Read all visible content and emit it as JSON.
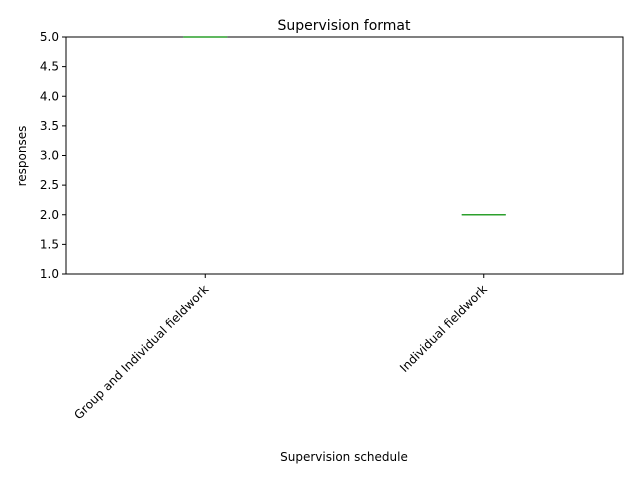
{
  "chart_data": {
    "type": "box",
    "title": "Supervision format",
    "xlabel": "Supervision schedule",
    "ylabel": "responses",
    "categories": [
      "Group and Individual fieldwork",
      "Individual fieldwork"
    ],
    "values": [
      5.0,
      2.0
    ],
    "ylim": [
      1.0,
      5.0
    ],
    "yticks": [
      "1.0",
      "1.5",
      "2.0",
      "2.5",
      "3.0",
      "3.5",
      "4.0",
      "4.5",
      "5.0"
    ],
    "grid": false,
    "legend": "none",
    "colors": {
      "box": "#1f77b4",
      "median": "#2ca02c",
      "axis": "#000000"
    }
  }
}
